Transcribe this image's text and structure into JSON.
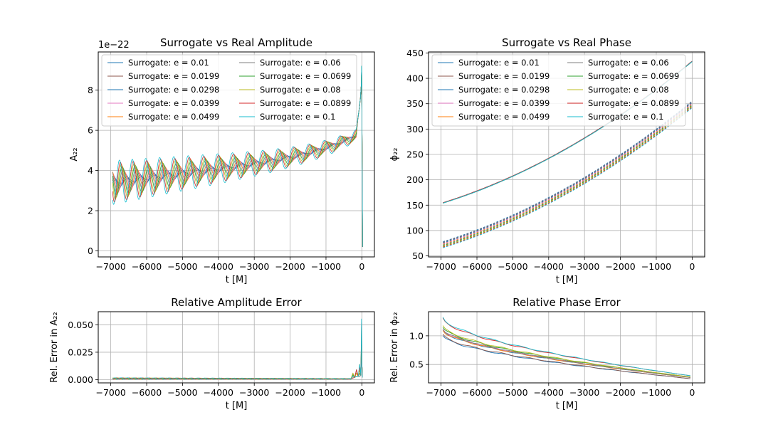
{
  "legend_series": [
    {
      "name": "Surrogate: e = 0.01",
      "e": 0.01,
      "color": "#1f77b4"
    },
    {
      "name": "Surrogate: e = 0.0199",
      "e": 0.0199,
      "color": "#8c564b"
    },
    {
      "name": "Surrogate: e = 0.0298",
      "e": 0.0298,
      "color": "#1f77b4"
    },
    {
      "name": "Surrogate: e = 0.0399",
      "e": 0.0399,
      "color": "#e377c2"
    },
    {
      "name": "Surrogate: e = 0.0499",
      "e": 0.0499,
      "color": "#ff7f0e"
    },
    {
      "name": "Surrogate: e = 0.06",
      "e": 0.06,
      "color": "#7f7f7f"
    },
    {
      "name": "Surrogate: e = 0.0699",
      "e": 0.0699,
      "color": "#2ca02c"
    },
    {
      "name": "Surrogate: e = 0.08",
      "e": 0.08,
      "color": "#bcbd22"
    },
    {
      "name": "Surrogate: e = 0.0899",
      "e": 0.0899,
      "color": "#d62728"
    },
    {
      "name": "Surrogate: e = 0.1",
      "e": 0.1,
      "color": "#17becf"
    }
  ],
  "chart_data": [
    {
      "id": "amp",
      "type": "line",
      "title": "Surrogate vs Real Amplitude",
      "xlabel": "t [M]",
      "ylabel": "A₂₂",
      "offset_text": "1e−22",
      "xlim": [
        -7350,
        350
      ],
      "ylim": [
        -0.3,
        9.9
      ],
      "xticks": [
        -7000,
        -6000,
        -5000,
        -4000,
        -3000,
        -2000,
        -1000,
        0
      ],
      "xtick_labels": [
        "−7000",
        "−6000",
        "−5000",
        "−4000",
        "−3000",
        "−2000",
        "−1000",
        "0"
      ],
      "yticks": [
        0,
        2,
        4,
        6,
        8
      ],
      "ytick_labels": [
        "0",
        "2",
        "4",
        "6",
        "8"
      ],
      "grid": true,
      "legend": "upper-left, 2 columns",
      "model": {
        "t_start": -6950,
        "t_end": 0,
        "base_at_start": 3.4,
        "base_near_merger": 5.6,
        "peak": 9.2,
        "osc_periods": 17,
        "osc_amp_per_e": 11
      }
    },
    {
      "id": "phase",
      "type": "line",
      "title": "Surrogate vs Real Phase",
      "xlabel": "t [M]",
      "ylabel": "ϕ₂₂",
      "xlim": [
        -7350,
        350
      ],
      "ylim": [
        48,
        452
      ],
      "xticks": [
        -7000,
        -6000,
        -5000,
        -4000,
        -3000,
        -2000,
        -1000,
        0
      ],
      "xtick_labels": [
        "−7000",
        "−6000",
        "−5000",
        "−4000",
        "−3000",
        "−2000",
        "−1000",
        "0"
      ],
      "yticks": [
        50,
        100,
        150,
        200,
        250,
        300,
        350,
        400,
        450
      ],
      "ytick_labels": [
        "50",
        "100",
        "150",
        "200",
        "250",
        "300",
        "350",
        "400",
        "450"
      ],
      "grid": true,
      "legend": "upper-left, 2 columns",
      "upper_curve": {
        "phi_start": 154,
        "phi_end": 433
      },
      "lower_dashed_curves": {
        "phi_start": [
          78,
          66
        ],
        "phi_end": [
          355,
          342
        ]
      }
    },
    {
      "id": "amp_err",
      "type": "line",
      "title": "Relative Amplitude Error",
      "xlabel": "t [M]",
      "ylabel": "Rel. Error in A₂₂",
      "xlim": [
        -7350,
        350
      ],
      "ylim": [
        -0.003,
        0.062
      ],
      "xticks": [
        -7000,
        -6000,
        -5000,
        -4000,
        -3000,
        -2000,
        -1000,
        0
      ],
      "xtick_labels": [
        "−7000",
        "−6000",
        "−5000",
        "−4000",
        "−3000",
        "−2000",
        "−1000",
        "0"
      ],
      "yticks": [
        0,
        0.025,
        0.05
      ],
      "ytick_labels": [
        "0.000",
        "0.025",
        "0.050"
      ],
      "grid": true,
      "peak_near_merger": 0.059
    },
    {
      "id": "phase_err",
      "type": "line",
      "title": "Relative Phase Error",
      "xlabel": "t [M]",
      "ylabel": "Rel. Error in ϕ₂₂",
      "xlim": [
        -7350,
        350
      ],
      "ylim": [
        0.18,
        1.42
      ],
      "xticks": [
        -7000,
        -6000,
        -5000,
        -4000,
        -3000,
        -2000,
        -1000,
        0
      ],
      "xtick_labels": [
        "−7000",
        "−6000",
        "−5000",
        "−4000",
        "−3000",
        "−2000",
        "−1000",
        "0"
      ],
      "yticks": [
        0.5,
        1.0
      ],
      "ytick_labels": [
        "0.5",
        "1.0"
      ],
      "grid": true,
      "start_values": [
        1.0,
        1.1,
        1.15,
        1.3
      ],
      "end_values": [
        0.25,
        0.27,
        0.28,
        0.3
      ]
    }
  ]
}
